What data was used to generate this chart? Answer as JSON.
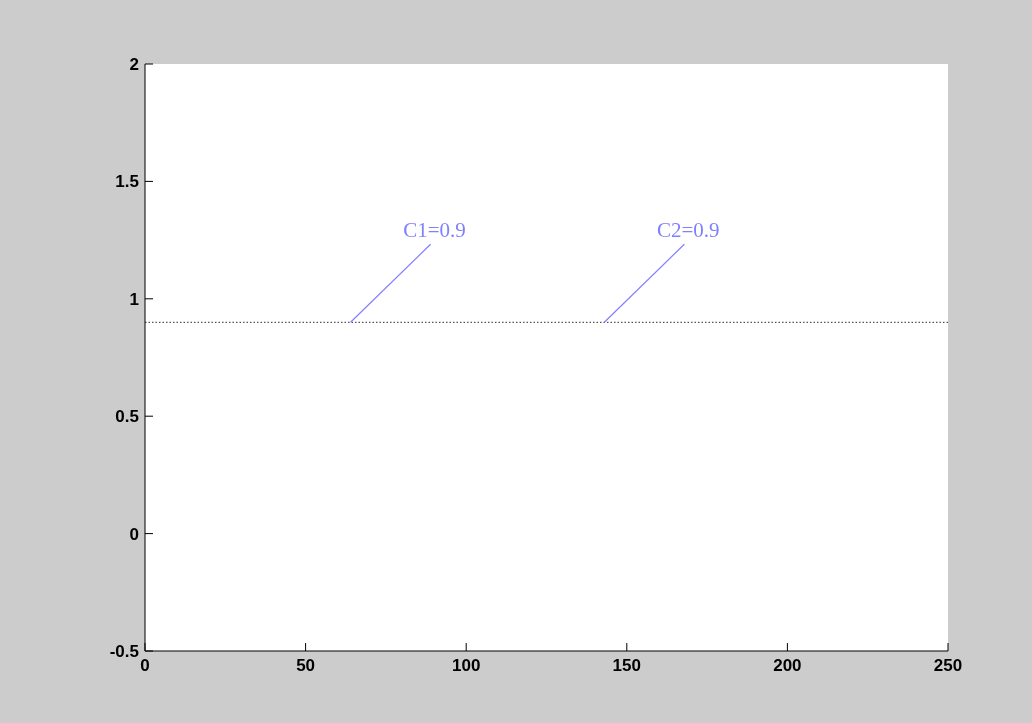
{
  "chart_data": {
    "type": "line",
    "x": [
      0,
      250
    ],
    "series": [
      {
        "color": "#555555",
        "values": [
          0.9,
          0.9
        ],
        "line_style": "dotted"
      }
    ],
    "xlim": [
      0,
      250
    ],
    "xticks": [
      0,
      50,
      100,
      150,
      200,
      250
    ],
    "ylim": [
      -0.5,
      2
    ],
    "yticks": [
      -0.5,
      0,
      0.5,
      1,
      1.5,
      2
    ],
    "grid": false,
    "marker": "none",
    "annotations": [
      {
        "text": "C1=0.9",
        "x": 64,
        "y": 0.9
      },
      {
        "text": "C2=0.9",
        "x": 143,
        "y": 0.9
      }
    ]
  }
}
